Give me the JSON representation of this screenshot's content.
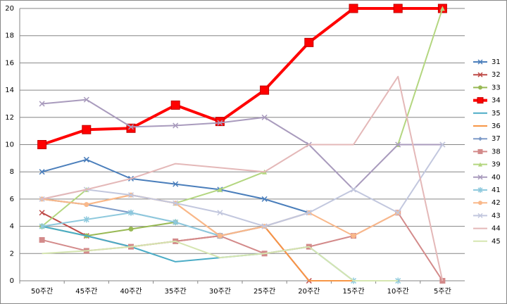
{
  "chart_data": {
    "type": "line",
    "categories": [
      "50주간",
      "45주간",
      "40주간",
      "35주간",
      "30주간",
      "25주간",
      "20주간",
      "15주간",
      "10주간",
      "5주간"
    ],
    "ylim": [
      0,
      20
    ],
    "yticks": [
      0,
      2,
      4,
      6,
      8,
      10,
      12,
      14,
      16,
      18,
      20
    ],
    "grid": true,
    "legend": "right",
    "series": [
      {
        "name": "31",
        "color": "#4a7ebb",
        "marker": "x",
        "values": [
          8,
          8.9,
          7.5,
          7.1,
          6.7,
          6,
          5,
          null,
          null,
          null
        ]
      },
      {
        "name": "32",
        "color": "#be4b48",
        "marker": "x",
        "values": [
          5,
          3.3,
          2.5,
          2.9,
          3.3,
          4,
          0,
          null,
          null,
          null
        ]
      },
      {
        "name": "33",
        "color": "#98b954",
        "marker": "circle",
        "values": [
          4,
          3.3,
          3.8,
          4.3,
          null,
          null,
          null,
          null,
          null,
          null
        ]
      },
      {
        "name": "34",
        "color": "#ff0000",
        "marker": "square",
        "width": 4,
        "values": [
          10,
          11.1,
          11.2,
          12.9,
          11.7,
          14,
          17.5,
          20,
          20,
          20
        ]
      },
      {
        "name": "35",
        "color": "#4bacc6",
        "marker": "none",
        "values": [
          4,
          3.3,
          2.5,
          1.4,
          1.7,
          2,
          2.5,
          0,
          null,
          null
        ]
      },
      {
        "name": "36",
        "color": "#f79646",
        "marker": "none",
        "values": [
          6,
          5.6,
          6.3,
          5.7,
          3.3,
          4,
          0,
          0,
          null,
          null
        ]
      },
      {
        "name": "37",
        "color": "#7e9bc8",
        "marker": "diamond",
        "values": [
          6,
          5.6,
          5,
          4.3,
          3.3,
          4,
          5,
          null,
          null,
          null
        ]
      },
      {
        "name": "38",
        "color": "#d38a8a",
        "marker": "square",
        "values": [
          3,
          2.2,
          2.5,
          2.9,
          3.3,
          2,
          2.5,
          3.3,
          5,
          0
        ]
      },
      {
        "name": "39",
        "color": "#b3d67f",
        "marker": "triangle",
        "values": [
          4,
          6.7,
          null,
          5.7,
          6.7,
          8,
          null,
          null,
          10,
          20
        ]
      },
      {
        "name": "40",
        "color": "#a99bbd",
        "marker": "x",
        "values": [
          13,
          13.3,
          11.3,
          11.4,
          11.6,
          12,
          10,
          6.7,
          10,
          10
        ]
      },
      {
        "name": "41",
        "color": "#8ec9dd",
        "marker": "star",
        "values": [
          4,
          4.5,
          5,
          4.3,
          3.3,
          null,
          null,
          0,
          0,
          null
        ]
      },
      {
        "name": "42",
        "color": "#f9b88a",
        "marker": "circle",
        "values": [
          6,
          5.6,
          6.3,
          5.7,
          3.3,
          4,
          5,
          3.3,
          5,
          null
        ]
      },
      {
        "name": "43",
        "color": "#c2c7de",
        "marker": "x",
        "values": [
          6,
          6.7,
          6.3,
          5.7,
          5,
          4,
          5,
          6.7,
          5,
          10
        ]
      },
      {
        "name": "44",
        "color": "#e4b8b8",
        "marker": "none",
        "values": [
          6,
          6.7,
          7.5,
          8.6,
          8.3,
          8,
          10,
          10,
          15,
          0
        ]
      },
      {
        "name": "45",
        "color": "#d5e5b0",
        "marker": "none",
        "values": [
          2,
          2.2,
          2.5,
          2.9,
          1.7,
          2,
          2.5,
          0,
          0,
          null
        ]
      }
    ]
  }
}
